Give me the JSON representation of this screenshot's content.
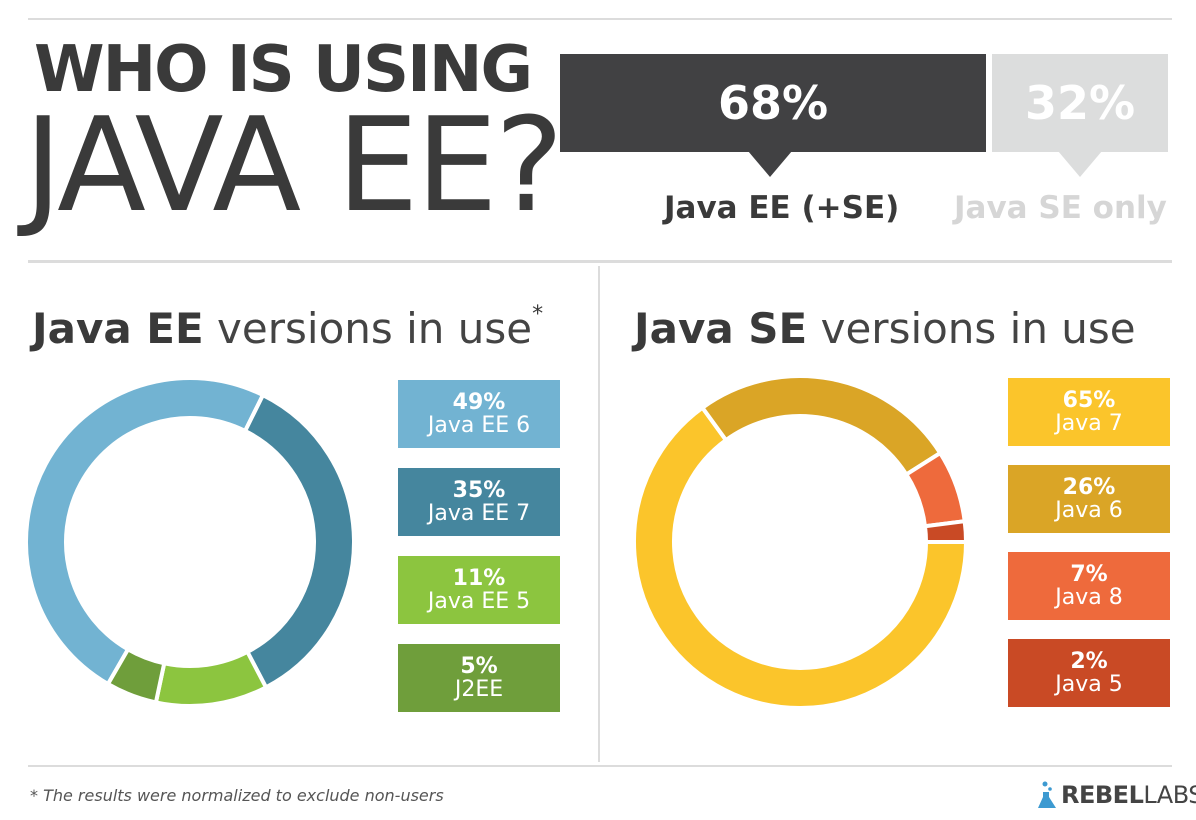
{
  "header": {
    "title_line1": "WHO IS USING",
    "title_line2": "JAVA EE?"
  },
  "usage": {
    "ee_pct": "68%",
    "ee_label": "Java EE (+SE)",
    "se_pct": "32%",
    "se_label": "Java SE only",
    "ee_color": "#414143",
    "se_color": "#dcdddd"
  },
  "ee_section": {
    "title_strong": "Java EE",
    "title_light": " versions in use",
    "asterisk": "*"
  },
  "se_section": {
    "title_strong": "Java SE",
    "title_light": " versions in use"
  },
  "footnote": "* The results were normalized to exclude non-users",
  "logo": {
    "icon": "flask-icon",
    "part1": "REBEL",
    "part2": "LABS"
  },
  "chart_data": [
    {
      "type": "pie",
      "title": "Java EE versions in use*",
      "categories": [
        "Java EE 6",
        "Java EE 7",
        "Java EE 5",
        "J2EE"
      ],
      "values": [
        49,
        35,
        11,
        5
      ],
      "labels": [
        "49%",
        "35%",
        "11%",
        "5%"
      ],
      "colors": [
        "#72b3d2",
        "#45869e",
        "#8cc53f",
        "#6f9e3b"
      ]
    },
    {
      "type": "pie",
      "title": "Java SE versions in use",
      "categories": [
        "Java 7",
        "Java 6",
        "Java 8",
        "Java 5"
      ],
      "values": [
        65,
        26,
        7,
        2
      ],
      "labels": [
        "65%",
        "26%",
        "7%",
        "2%"
      ],
      "colors": [
        "#fbc52b",
        "#daa526",
        "#ee6a3c",
        "#c94a25"
      ]
    }
  ]
}
